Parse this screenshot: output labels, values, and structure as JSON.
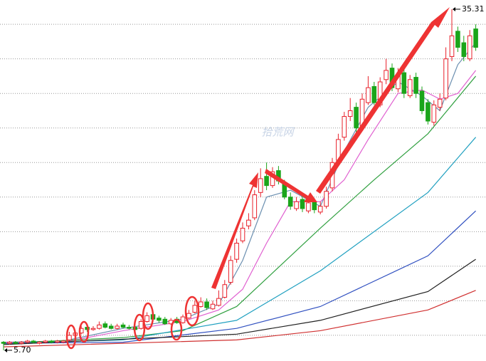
{
  "chart_data": {
    "type": "candlestick",
    "watermark": "拾荒网",
    "open": [
      6.4,
      6.3,
      6.4,
      6.3,
      6.4,
      6.5,
      6.3,
      6.4,
      6.5,
      6.4,
      6.4,
      6.6,
      7.0,
      7.2,
      7.7,
      7.5,
      7.6,
      8.0,
      7.8,
      7.6,
      7.9,
      7.7,
      7.7,
      7.6,
      8.2,
      8.8,
      8.5,
      8.4,
      8.0,
      8.4,
      8.1,
      8.5,
      9.0,
      9.5,
      9.9,
      9.3,
      9.6,
      10.3,
      11.6,
      13.6,
      15.2,
      16.5,
      17.2,
      19.4,
      20.8,
      20.0,
      21.3,
      20.2,
      19.0,
      18.0,
      18.8,
      17.8,
      18.6,
      17.7,
      18.2,
      19.8,
      22.2,
      24.2,
      26.0,
      26.8,
      25.2,
      27.2,
      28.6,
      27.0,
      29.2,
      30.2,
      28.4,
      29.8,
      27.8,
      29.4,
      28.2,
      27.2,
      25.5,
      26.8,
      27.6,
      31.2,
      33.4,
      32.4,
      31.0,
      33.6
    ],
    "high": [
      6.5,
      6.5,
      6.5,
      6.5,
      6.6,
      6.6,
      6.5,
      6.6,
      6.6,
      6.6,
      6.6,
      7.3,
      7.4,
      7.8,
      7.9,
      7.8,
      8.2,
      8.2,
      8.0,
      8.0,
      8.1,
      7.9,
      7.8,
      8.4,
      9.0,
      9.0,
      8.7,
      8.6,
      8.5,
      8.6,
      8.8,
      9.2,
      10.0,
      10.3,
      10.2,
      10.0,
      10.9,
      11.8,
      13.9,
      15.4,
      16.8,
      17.6,
      19.6,
      21.5,
      22.0,
      21.6,
      21.7,
      20.5,
      19.4,
      19.0,
      19.2,
      18.9,
      18.9,
      18.6,
      19.9,
      22.4,
      24.5,
      26.4,
      27.6,
      27.2,
      28.0,
      29.5,
      29.0,
      29.4,
      31.0,
      30.6,
      30.2,
      30.4,
      29.6,
      29.8,
      28.6,
      27.5,
      27.4,
      28.0,
      32.0,
      35.31,
      33.8,
      33.0,
      33.5,
      34.0
    ],
    "low": [
      5.7,
      6.2,
      6.2,
      6.2,
      6.3,
      6.3,
      6.2,
      6.3,
      6.3,
      6.3,
      6.3,
      6.5,
      6.9,
      7.1,
      7.3,
      7.4,
      7.5,
      7.6,
      7.5,
      7.5,
      7.6,
      7.5,
      7.4,
      7.5,
      8.1,
      8.3,
      8.1,
      7.9,
      7.9,
      8.0,
      8.0,
      8.4,
      8.9,
      9.4,
      9.2,
      9.2,
      9.5,
      10.2,
      11.4,
      13.3,
      15.0,
      16.2,
      17.0,
      19.0,
      19.6,
      19.8,
      20.1,
      18.8,
      17.9,
      17.8,
      17.7,
      17.6,
      17.6,
      17.5,
      18.0,
      19.5,
      22.0,
      23.9,
      25.6,
      24.6,
      25.0,
      27.0,
      27.0,
      26.8,
      28.8,
      28.2,
      28.1,
      27.6,
      27.6,
      27.6,
      26.2,
      25.3,
      25.2,
      26.5,
      27.4,
      30.8,
      31.6,
      30.8,
      30.8,
      31.7
    ],
    "close": [
      6.3,
      6.4,
      6.3,
      6.4,
      6.5,
      6.4,
      6.4,
      6.5,
      6.4,
      6.5,
      6.5,
      7.0,
      7.2,
      7.6,
      7.5,
      7.6,
      7.9,
      7.7,
      7.6,
      7.8,
      7.7,
      7.6,
      7.5,
      8.2,
      8.7,
      8.4,
      8.3,
      8.0,
      8.3,
      8.1,
      8.6,
      8.9,
      9.6,
      9.9,
      9.4,
      9.7,
      10.2,
      11.4,
      13.5,
      15.0,
      16.3,
      17.0,
      19.2,
      20.6,
      20.0,
      21.2,
      20.4,
      19.0,
      18.2,
      18.6,
      18.0,
      18.5,
      17.9,
      18.2,
      19.5,
      22.0,
      24.0,
      26.0,
      26.5,
      25.0,
      27.5,
      28.5,
      27.2,
      29.0,
      30.0,
      28.5,
      29.5,
      28.0,
      29.2,
      28.0,
      26.5,
      25.6,
      27.0,
      27.5,
      31.0,
      33.0,
      32.0,
      31.2,
      33.0,
      32.0
    ],
    "up_color": "#e8202a",
    "down_color": "#1aa51a",
    "ylim": [
      4.77,
      36.11
    ],
    "yticks": [
      7,
      10,
      13,
      16,
      19,
      22,
      25,
      28,
      31,
      34
    ],
    "grid": true,
    "lines": [
      {
        "color": "#6b8fb0",
        "x": [
          0,
          10,
          20,
          30,
          36,
          40,
          44,
          48,
          53,
          57,
          61,
          66,
          70,
          73,
          76,
          79
        ],
        "values": [
          6.4,
          6.5,
          7.6,
          8.4,
          9.7,
          13.5,
          19.0,
          19.6,
          18.2,
          23.0,
          26.8,
          29.0,
          27.8,
          26.5,
          30.5,
          32.4
        ]
      },
      {
        "color": "#e060d0",
        "x": [
          0,
          10,
          20,
          30,
          36,
          40,
          44,
          48,
          53,
          57,
          61,
          66,
          70,
          73,
          76,
          79
        ],
        "values": [
          6.4,
          6.4,
          7.4,
          8.2,
          9.2,
          11.0,
          15.0,
          18.6,
          18.6,
          20.5,
          24.0,
          28.0,
          28.3,
          27.5,
          28.0,
          30.0
        ]
      },
      {
        "color": "#30a040",
        "x": [
          0,
          20,
          30,
          39,
          53,
          62,
          71,
          79
        ],
        "values": [
          6.3,
          6.8,
          7.4,
          9.5,
          16.3,
          20.5,
          24.5,
          29.5
        ]
      },
      {
        "color": "#20a0c0",
        "x": [
          0,
          20,
          39,
          53,
          71,
          79
        ],
        "values": [
          6.3,
          6.6,
          8.3,
          12.6,
          19.4,
          24.2
        ]
      },
      {
        "color": "#3050c0",
        "x": [
          0,
          20,
          39,
          53,
          71,
          79
        ],
        "values": [
          6.3,
          6.4,
          7.6,
          9.5,
          13.9,
          17.8
        ]
      },
      {
        "color": "#202020",
        "x": [
          0,
          39,
          53,
          71,
          79
        ],
        "values": [
          6.2,
          7.1,
          8.3,
          10.8,
          13.6
        ]
      },
      {
        "color": "#d03030",
        "x": [
          0,
          39,
          53,
          71,
          79
        ],
        "values": [
          6.0,
          6.6,
          7.4,
          9.2,
          10.9
        ]
      }
    ],
    "annotations": [
      {
        "value": 35.31,
        "label": "35.31"
      },
      {
        "value": 5.7,
        "label": "5.70"
      }
    ]
  }
}
